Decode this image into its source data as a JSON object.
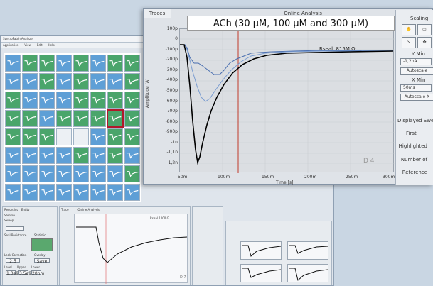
{
  "bg_window": {
    "title": "SyncroPatch Analyzer",
    "menu": [
      "Application",
      "View",
      "Edit",
      "Help"
    ],
    "bottom_tabs": [
      "Recording",
      "Entity",
      "Trace",
      "Online Analysis"
    ],
    "left_labels": [
      "Sample",
      "Sweep",
      "Seal Resistance",
      "Statistic",
      "Leak Correction",
      "Overlay",
      "Level",
      "Upper",
      "Lower"
    ],
    "save_label": "Save",
    "delete_label": "Edit",
    "fields": [
      "2.5",
      "1.0e9",
      "3.5e9",
      "20nm"
    ],
    "rseal_small": "Rseal 1000 G",
    "well_small": "D 7"
  },
  "front": {
    "tabs": [
      "Traces",
      "Online Analysis"
    ],
    "banner": "ACh (30 µM, 100 µM and 300 µM)",
    "rseal": "Rseal  .815M Ω",
    "well": "D 4",
    "ylabel": "Amplitude [A]",
    "xlabel": "Time [s]",
    "yticks": [
      "100p",
      "0",
      "-100p",
      "-200p",
      "-300p",
      "-400p",
      "-500p",
      "-600p",
      "-700p",
      "-800p",
      "-900p",
      "-1n",
      "-1,1n",
      "-1,2n"
    ],
    "xticks": [
      "50m",
      "100m",
      "150m",
      "200m",
      "250m",
      "300m"
    ]
  },
  "controls": {
    "title": "Scaling",
    "ymin_label": "Y Min",
    "ymin_value": "-1,2nA",
    "autoscale_y": "Autoscale",
    "xmin_label": "X Min",
    "xmin_value": "50ms",
    "autoscale_x": "Autoscale X",
    "displayed": "Displayed Swe",
    "first": "First",
    "highlighted": "Highlighted",
    "number": "Number of",
    "reference": "Reference"
  },
  "colors": {
    "well_green": "#4aa56b",
    "well_blue": "#5e9fd6",
    "trace_black": "#000000",
    "trace_blue": "#4a6fb0",
    "marker_red": "#c0392b"
  }
}
